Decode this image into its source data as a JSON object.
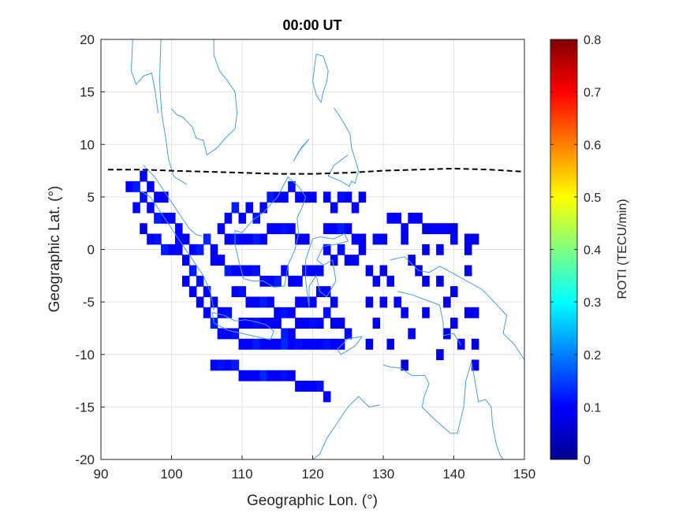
{
  "chart_data": {
    "type": "heatmap",
    "title": "00:00 UT",
    "xlabel": "Geographic Lon. (°)",
    "ylabel": "Geographic Lat. (°)",
    "xlim": [
      90,
      150
    ],
    "ylim": [
      -20,
      20
    ],
    "xticks": [
      90,
      100,
      110,
      120,
      130,
      140,
      150
    ],
    "yticks": [
      -20,
      -15,
      -10,
      -5,
      0,
      5,
      10,
      15,
      20
    ],
    "grid": true,
    "colorbar": {
      "label": "ROTI (TECU/min)",
      "colormap": "jet",
      "range": [
        0,
        0.8
      ],
      "ticks": [
        0,
        0.1,
        0.2,
        0.3,
        0.4,
        0.5,
        0.6,
        0.7,
        0.8
      ]
    },
    "boundary_line": {
      "style": "dashed",
      "color": "#000000",
      "lon": [
        91,
        96,
        100,
        105,
        110,
        115,
        120,
        125,
        130,
        135,
        140,
        145,
        150
      ],
      "lat": [
        7.6,
        7.6,
        7.5,
        7.4,
        7.3,
        7.2,
        7.2,
        7.3,
        7.5,
        7.6,
        7.7,
        7.6,
        7.4
      ]
    },
    "coastline_color": "#4a9fd0",
    "roti_cells": [
      [
        94,
        6,
        0.1
      ],
      [
        95,
        6,
        0.12
      ],
      [
        96,
        7,
        0.1
      ],
      [
        97,
        6,
        0.09
      ],
      [
        98,
        5,
        0.1
      ],
      [
        99,
        5,
        0.08
      ],
      [
        95,
        4,
        0.1
      ],
      [
        96,
        5,
        0.11
      ],
      [
        97,
        4,
        0.1
      ],
      [
        98,
        3,
        0.12
      ],
      [
        99,
        3,
        0.1
      ],
      [
        100,
        3,
        0.1
      ],
      [
        101,
        2,
        0.09
      ],
      [
        96,
        2,
        0.08
      ],
      [
        97,
        1,
        0.1
      ],
      [
        98,
        1,
        0.11
      ],
      [
        99,
        0,
        0.12
      ],
      [
        100,
        0,
        0.1
      ],
      [
        101,
        0,
        0.1
      ],
      [
        102,
        -1,
        0.1
      ],
      [
        103,
        -2,
        0.12
      ],
      [
        104,
        -3,
        0.11
      ],
      [
        105,
        -4,
        0.1
      ],
      [
        106,
        -5,
        0.1
      ],
      [
        107,
        -6,
        0.1
      ],
      [
        108,
        -6,
        0.11
      ],
      [
        101,
        1,
        0.1
      ],
      [
        102,
        1,
        0.09
      ],
      [
        103,
        0,
        0.1
      ],
      [
        104,
        0,
        0.12
      ],
      [
        105,
        1,
        0.13
      ],
      [
        106,
        0,
        0.1
      ],
      [
        102,
        -3,
        0.1
      ],
      [
        103,
        -4,
        0.1
      ],
      [
        104,
        -5,
        0.09
      ],
      [
        105,
        -6,
        0.1
      ],
      [
        106,
        -7,
        0.12
      ],
      [
        107,
        -8,
        0.1
      ],
      [
        108,
        -8,
        0.1
      ],
      [
        109,
        -8,
        0.11
      ],
      [
        110,
        -9,
        0.1
      ],
      [
        111,
        -9,
        0.1
      ],
      [
        112,
        -9,
        0.12
      ],
      [
        113,
        -9,
        0.1
      ],
      [
        114,
        -9,
        0.1
      ],
      [
        115,
        -9,
        0.1
      ],
      [
        116,
        -9,
        0.13
      ],
      [
        117,
        -9,
        0.1
      ],
      [
        118,
        -9,
        0.11
      ],
      [
        119,
        -9,
        0.1
      ],
      [
        120,
        -9,
        0.1
      ],
      [
        121,
        -9,
        0.1
      ],
      [
        122,
        -9,
        0.11
      ],
      [
        123,
        -9,
        0.1
      ],
      [
        124,
        -9,
        0.1
      ],
      [
        125,
        -8,
        0.1
      ],
      [
        108,
        3,
        0.1
      ],
      [
        109,
        4,
        0.12
      ],
      [
        110,
        3,
        0.1
      ],
      [
        111,
        4,
        0.1
      ],
      [
        112,
        3,
        0.11
      ],
      [
        113,
        4,
        0.1
      ],
      [
        114,
        5,
        0.12
      ],
      [
        115,
        5,
        0.1
      ],
      [
        116,
        5,
        0.1
      ],
      [
        117,
        6,
        0.11
      ],
      [
        118,
        5,
        0.1
      ],
      [
        119,
        5,
        0.1
      ],
      [
        120,
        5,
        0.1
      ],
      [
        107,
        2,
        0.1
      ],
      [
        108,
        1,
        0.1
      ],
      [
        109,
        1,
        0.11
      ],
      [
        110,
        1,
        0.1
      ],
      [
        111,
        1,
        0.1
      ],
      [
        112,
        1,
        0.12
      ],
      [
        113,
        1,
        0.1
      ],
      [
        114,
        2,
        0.1
      ],
      [
        115,
        2,
        0.1
      ],
      [
        116,
        2,
        0.11
      ],
      [
        117,
        2,
        0.1
      ],
      [
        118,
        1,
        0.1
      ],
      [
        119,
        1,
        0.1
      ],
      [
        106,
        -1,
        0.1
      ],
      [
        107,
        -1,
        0.1
      ],
      [
        108,
        -2,
        0.12
      ],
      [
        109,
        -2,
        0.1
      ],
      [
        110,
        -2,
        0.1
      ],
      [
        111,
        -2,
        0.1
      ],
      [
        112,
        -2,
        0.11
      ],
      [
        113,
        -3,
        0.1
      ],
      [
        114,
        -3,
        0.1
      ],
      [
        115,
        -3,
        0.12
      ],
      [
        116,
        -2,
        0.1
      ],
      [
        117,
        -3,
        0.1
      ],
      [
        118,
        -3,
        0.1
      ],
      [
        119,
        -2,
        0.11
      ],
      [
        120,
        -2,
        0.1
      ],
      [
        121,
        -2,
        0.1
      ],
      [
        109,
        -4,
        0.1
      ],
      [
        110,
        -4,
        0.11
      ],
      [
        111,
        -5,
        0.1
      ],
      [
        112,
        -5,
        0.1
      ],
      [
        113,
        -5,
        0.12
      ],
      [
        114,
        -5,
        0.1
      ],
      [
        115,
        -6,
        0.1
      ],
      [
        116,
        -6,
        0.11
      ],
      [
        117,
        -6,
        0.1
      ],
      [
        118,
        -5,
        0.1
      ],
      [
        119,
        -5,
        0.1
      ],
      [
        120,
        -5,
        0.1
      ],
      [
        110,
        -7,
        0.1
      ],
      [
        111,
        -7,
        0.1
      ],
      [
        112,
        -7,
        0.11
      ],
      [
        113,
        -7,
        0.1
      ],
      [
        114,
        -7,
        0.1
      ],
      [
        115,
        -7,
        0.1
      ],
      [
        116,
        -8,
        0.12
      ],
      [
        117,
        -8,
        0.1
      ],
      [
        118,
        -7,
        0.1
      ],
      [
        119,
        -7,
        0.1
      ],
      [
        120,
        -7,
        0.11
      ],
      [
        121,
        -7,
        0.1
      ],
      [
        122,
        5,
        0.1
      ],
      [
        123,
        4,
        0.1
      ],
      [
        124,
        5,
        0.11
      ],
      [
        125,
        5,
        0.1
      ],
      [
        126,
        4,
        0.1
      ],
      [
        127,
        5,
        0.1
      ],
      [
        122,
        2,
        0.1
      ],
      [
        123,
        2,
        0.1
      ],
      [
        124,
        2,
        0.12
      ],
      [
        125,
        2,
        0.1
      ],
      [
        126,
        1,
        0.1
      ],
      [
        127,
        1,
        0.1
      ],
      [
        122,
        0,
        0.1
      ],
      [
        123,
        -1,
        0.1
      ],
      [
        124,
        0,
        0.11
      ],
      [
        125,
        -1,
        0.1
      ],
      [
        126,
        -1,
        0.1
      ],
      [
        127,
        0,
        0.1
      ],
      [
        121,
        -4,
        0.1
      ],
      [
        122,
        -4,
        0.1
      ],
      [
        123,
        -5,
        0.1
      ],
      [
        122,
        -6,
        0.11
      ],
      [
        123,
        -7,
        0.1
      ],
      [
        124,
        -7,
        0.1
      ],
      [
        128,
        -2,
        0.09
      ],
      [
        129,
        -3,
        0.1
      ],
      [
        130,
        -2,
        0.08
      ],
      [
        131,
        -3,
        0.09
      ],
      [
        129,
        1,
        0.1
      ],
      [
        130,
        1,
        0.09
      ],
      [
        131,
        3,
        0.1
      ],
      [
        132,
        3,
        0.1
      ],
      [
        133,
        2,
        0.1
      ],
      [
        134,
        3,
        0.1
      ],
      [
        133,
        1,
        0.09
      ],
      [
        130,
        -5,
        0.09
      ],
      [
        132,
        -5,
        0.1
      ],
      [
        133,
        -6,
        0.1
      ],
      [
        128,
        -5,
        0.08
      ],
      [
        129,
        -7,
        0.09
      ],
      [
        135,
        3,
        0.09
      ],
      [
        136,
        2,
        0.08
      ],
      [
        137,
        2,
        0.09
      ],
      [
        138,
        2,
        0.1
      ],
      [
        139,
        2,
        0.09
      ],
      [
        140,
        2,
        0.08
      ],
      [
        136,
        0,
        0.08
      ],
      [
        138,
        0,
        0.09
      ],
      [
        140,
        1,
        0.1
      ],
      [
        142,
        1,
        0.09
      ],
      [
        143,
        1,
        0.08
      ],
      [
        142,
        0,
        0.08
      ],
      [
        134,
        -1,
        0.09
      ],
      [
        135,
        -2,
        0.08
      ],
      [
        136,
        -3,
        0.09
      ],
      [
        138,
        -3,
        0.08
      ],
      [
        140,
        -4,
        0.09
      ],
      [
        142,
        -2,
        0.08
      ],
      [
        136,
        -6,
        0.09
      ],
      [
        139,
        -5,
        0.08
      ],
      [
        140,
        -7,
        0.09
      ],
      [
        142,
        -6,
        0.08
      ],
      [
        143,
        -6,
        0.09
      ],
      [
        131,
        -9,
        0.08
      ],
      [
        134,
        -8,
        0.09
      ],
      [
        139,
        -8,
        0.08
      ],
      [
        141,
        -9,
        0.09
      ],
      [
        143,
        -9,
        0.08
      ],
      [
        128,
        -9,
        0.08
      ],
      [
        133,
        -11,
        0.07
      ],
      [
        138,
        -10,
        0.08
      ],
      [
        143,
        -11,
        0.08
      ],
      [
        106,
        -11,
        0.1
      ],
      [
        107,
        -11,
        0.11
      ],
      [
        108,
        -11,
        0.1
      ],
      [
        109,
        -11,
        0.12
      ],
      [
        110,
        -12,
        0.1
      ],
      [
        111,
        -12,
        0.1
      ],
      [
        112,
        -12,
        0.1
      ],
      [
        113,
        -12,
        0.13
      ],
      [
        114,
        -12,
        0.1
      ],
      [
        115,
        -12,
        0.1
      ],
      [
        116,
        -12,
        0.11
      ],
      [
        117,
        -12,
        0.1
      ],
      [
        118,
        -13,
        0.1
      ],
      [
        119,
        -13,
        0.1
      ],
      [
        120,
        -13,
        0.1
      ],
      [
        121,
        -13,
        0.11
      ],
      [
        122,
        -14,
        0.1
      ]
    ]
  }
}
